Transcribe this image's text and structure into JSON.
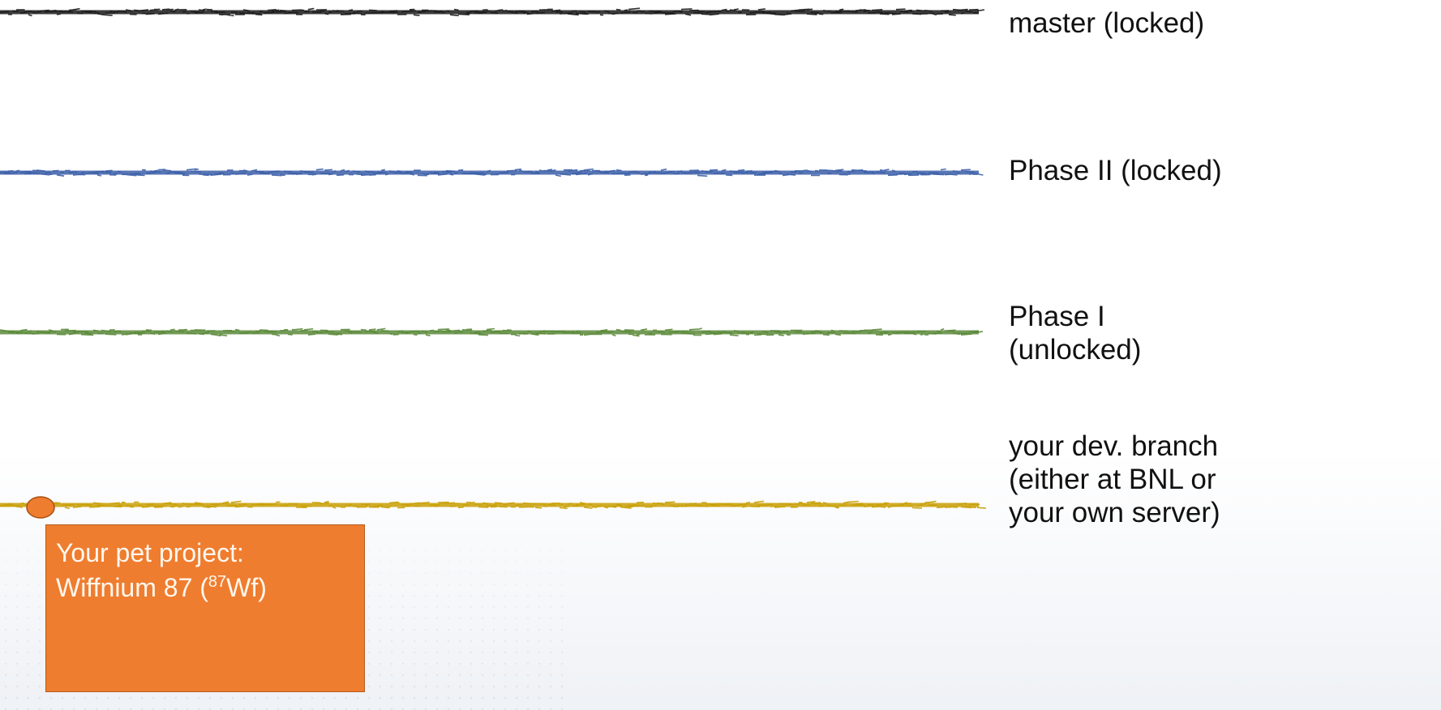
{
  "branches": [
    {
      "id": "master",
      "label": "master (locked)",
      "color": "#1b1b1b"
    },
    {
      "id": "phase2",
      "label": "Phase II (locked)",
      "color": "#3b5fa8"
    },
    {
      "id": "phase1",
      "label": "Phase I (unlocked)",
      "color": "#5b8a3a"
    },
    {
      "id": "dev",
      "label": "your dev. branch (either at BNL or your own server)",
      "color": "#c9a006"
    }
  ],
  "commit_color": "#ef7d2f",
  "note": {
    "line1": "Your pet project:",
    "line2_prefix": "Wiffnium 87  (",
    "isotope_mass": "87",
    "isotope_symbol": "Wf)"
  }
}
